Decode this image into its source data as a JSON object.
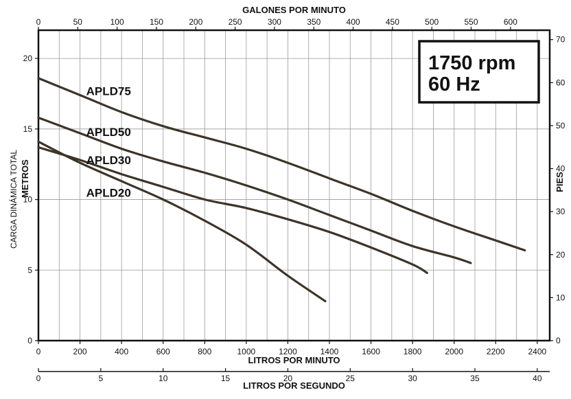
{
  "chart_data": {
    "type": "line",
    "xlabel": "LITROS POR MINUTO",
    "ylabel": "METROS",
    "ylabel_secondary": "CARGA DINÁMICA TOTAL",
    "top_axis_title": "GALONES POR MINUTO",
    "right_axis_title": "PIES",
    "bottom_secondary_title": "LITROS POR SEGUNDO",
    "annotation": {
      "line1": "1750 rpm",
      "line2": "60 Hz"
    },
    "xlim": [
      0,
      2460
    ],
    "ylim": [
      0,
      22
    ],
    "grid": true,
    "x_ticks": [
      0,
      200,
      400,
      600,
      800,
      1000,
      1200,
      1400,
      1600,
      1800,
      2000,
      2200,
      2400
    ],
    "y_ticks": [
      0,
      5,
      10,
      15,
      20
    ],
    "top_ticks": [
      0,
      50,
      100,
      150,
      200,
      250,
      300,
      350,
      400,
      450,
      500,
      550,
      600
    ],
    "right_ticks": [
      0,
      10,
      20,
      30,
      40,
      50,
      60,
      70
    ],
    "bottom_secondary_ticks": [
      0,
      5,
      10,
      15,
      20,
      25,
      30,
      35,
      40
    ],
    "series": [
      {
        "name": "APLD75",
        "color": "#3d3427",
        "x": [
          0,
          200,
          400,
          600,
          800,
          1000,
          1200,
          1400,
          1600,
          1800,
          2000,
          2200,
          2340
        ],
        "y": [
          18.6,
          17.4,
          16.2,
          15.2,
          14.4,
          13.6,
          12.6,
          11.5,
          10.4,
          9.2,
          8.1,
          7.1,
          6.4
        ]
      },
      {
        "name": "APLD50",
        "color": "#3d3427",
        "x": [
          0,
          200,
          400,
          600,
          800,
          1000,
          1200,
          1400,
          1600,
          1800,
          2000,
          2080
        ],
        "y": [
          15.8,
          14.7,
          13.6,
          12.7,
          11.9,
          11.0,
          10.0,
          8.9,
          7.8,
          6.7,
          5.9,
          5.5
        ]
      },
      {
        "name": "APLD30",
        "color": "#3d3427",
        "x": [
          0,
          200,
          400,
          600,
          800,
          1000,
          1200,
          1400,
          1600,
          1800,
          1870
        ],
        "y": [
          13.7,
          12.8,
          11.8,
          10.9,
          10.0,
          9.4,
          8.6,
          7.7,
          6.6,
          5.4,
          4.8
        ]
      },
      {
        "name": "APLD20",
        "color": "#3d3427",
        "x": [
          0,
          200,
          400,
          600,
          800,
          1000,
          1200,
          1380
        ],
        "y": [
          14.1,
          12.6,
          11.3,
          10.0,
          8.5,
          6.8,
          4.6,
          2.8
        ]
      }
    ],
    "series_label_positions": [
      {
        "name": "APLD75",
        "x": 230,
        "y": 17.7
      },
      {
        "name": "APLD50",
        "x": 230,
        "y": 14.8
      },
      {
        "name": "APLD30",
        "x": 230,
        "y": 12.8
      },
      {
        "name": "APLD20",
        "x": 230,
        "y": 10.5
      }
    ]
  }
}
